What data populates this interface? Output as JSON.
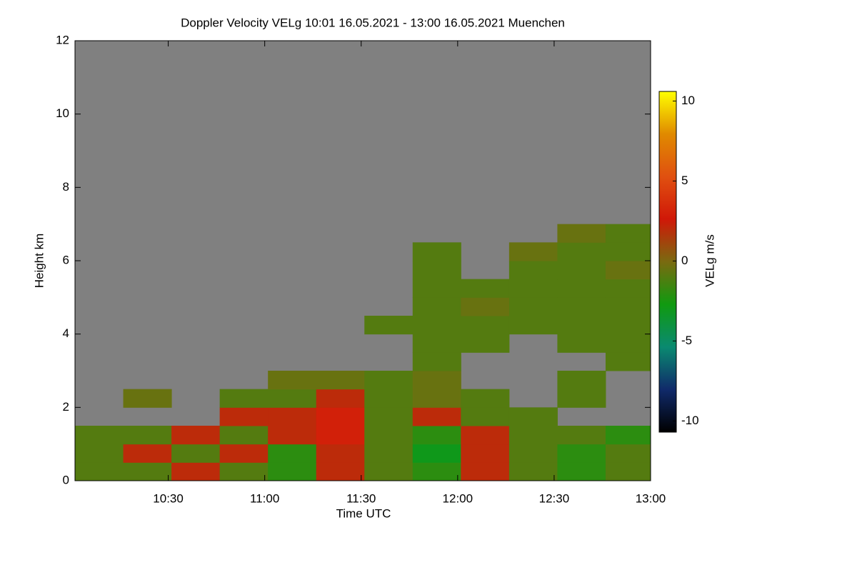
{
  "chart_data": {
    "type": "heatmap",
    "title": "Doppler Velocity VELg   10:01 16.05.2021 - 13:00 16.05.2021 Muenchen",
    "xlabel": "Time UTC",
    "ylabel": "Height km",
    "colorbar_label": "VELg m/s",
    "xlim": [
      601,
      780
    ],
    "xticks": [
      {
        "value": 630,
        "label": "10:30"
      },
      {
        "value": 660,
        "label": "11:00"
      },
      {
        "value": 690,
        "label": "11:30"
      },
      {
        "value": 720,
        "label": "12:00"
      },
      {
        "value": 750,
        "label": "12:30"
      },
      {
        "value": 780,
        "label": "13:00"
      }
    ],
    "ylim": [
      0,
      12
    ],
    "yticks": [
      0,
      2,
      4,
      6,
      8,
      10,
      12
    ],
    "clim": [
      -10.7,
      10.6
    ],
    "cticks": [
      -10,
      -5,
      0,
      5,
      10
    ],
    "colormap": [
      "#000000",
      "#102a6a",
      "#0a8a70",
      "#109a10",
      "#7a6a10",
      "#d01808",
      "#e05010",
      "#e08a00",
      "#ffff00"
    ],
    "nodata_color": "#808080",
    "xbins": [
      601,
      616,
      631,
      646,
      661,
      676,
      691,
      706,
      721,
      736,
      751,
      766,
      780
    ],
    "ybins": [
      0,
      0.5,
      1,
      1.5,
      2,
      2.5,
      3,
      3.5,
      4,
      4.5,
      5,
      5.5,
      6,
      6.5,
      7
    ],
    "values": [
      [
        -1,
        -1,
        2,
        -1,
        -2,
        2,
        -1,
        -2,
        2,
        -1,
        -2,
        -1
      ],
      [
        -1,
        2,
        -1,
        2,
        -2,
        2,
        -1,
        -3,
        2,
        -1,
        -2,
        -1
      ],
      [
        -1,
        -1,
        2,
        -1,
        2,
        3,
        -1,
        -2,
        2,
        -1,
        -1,
        -2
      ],
      [
        null,
        null,
        null,
        2,
        2,
        3,
        -1,
        2,
        -1,
        -1,
        null,
        null
      ],
      [
        null,
        -0.5,
        null,
        -1,
        -1,
        2,
        -1,
        -0.5,
        -1,
        null,
        -1,
        null
      ],
      [
        null,
        null,
        null,
        null,
        -0.5,
        -0.5,
        -1,
        -0.5,
        null,
        null,
        -1,
        null
      ],
      [
        null,
        null,
        null,
        null,
        null,
        null,
        null,
        -1,
        null,
        null,
        null,
        -1
      ],
      [
        null,
        null,
        null,
        null,
        null,
        null,
        null,
        -1,
        -1,
        null,
        -1,
        -1
      ],
      [
        null,
        null,
        null,
        null,
        null,
        null,
        -1,
        -1,
        -1,
        -1,
        -1,
        -1
      ],
      [
        null,
        null,
        null,
        null,
        null,
        null,
        null,
        -1,
        -0.5,
        -1,
        -1,
        -1
      ],
      [
        null,
        null,
        null,
        null,
        null,
        null,
        null,
        -1,
        -1,
        -1,
        -1,
        -1
      ],
      [
        null,
        null,
        null,
        null,
        null,
        null,
        null,
        -1,
        null,
        -1,
        -1,
        -0.5
      ],
      [
        null,
        null,
        null,
        null,
        null,
        null,
        null,
        -1,
        null,
        -0.5,
        -1,
        -1
      ],
      [
        null,
        null,
        null,
        null,
        null,
        null,
        null,
        null,
        null,
        null,
        -0.5,
        -1
      ]
    ]
  }
}
